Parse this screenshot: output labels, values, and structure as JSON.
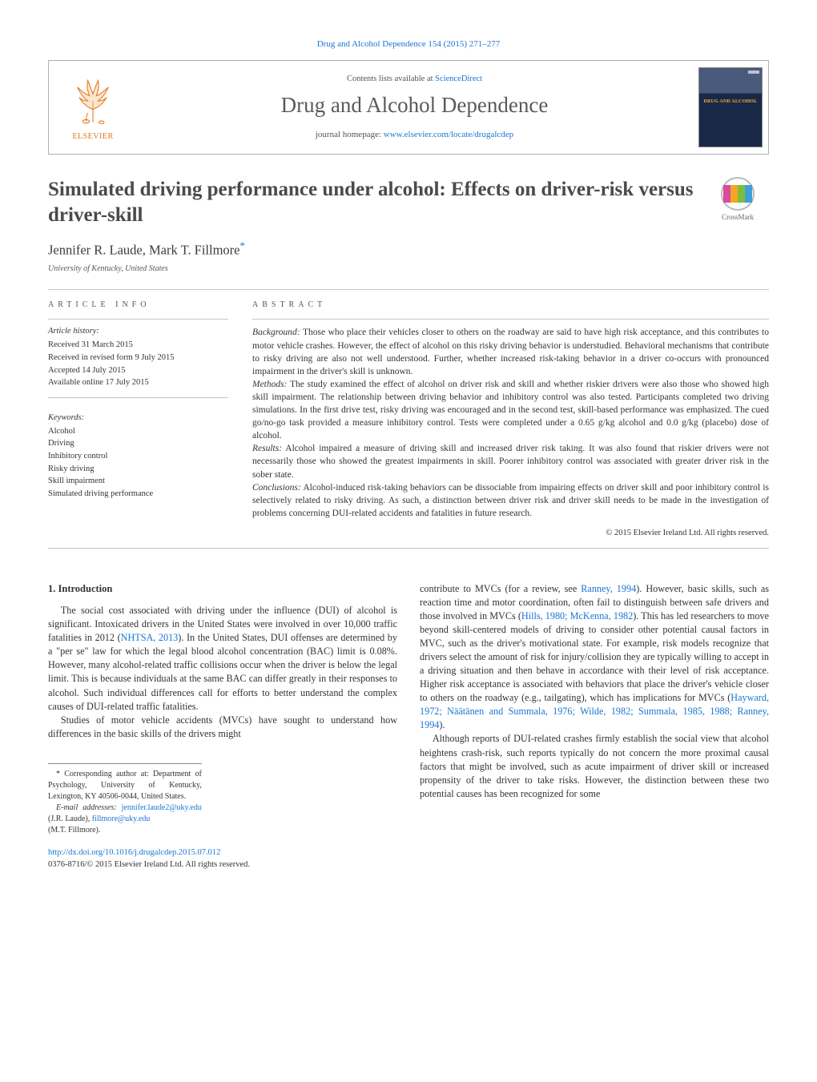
{
  "colors": {
    "link": "#1976d2",
    "text": "#333333",
    "muted": "#5a5a5a",
    "rule": "#c5c5c5",
    "elsevier": "#e67817",
    "crossmark_segments": [
      "#d94b9b",
      "#f5a623",
      "#7bbf3f",
      "#3fa0d9"
    ]
  },
  "top_link": {
    "prefix": "Drug and Alcohol Dependence 154 (2015) 271–277"
  },
  "header": {
    "contents_prefix": "Contents lists available at ",
    "contents_link": "ScienceDirect",
    "journal": "Drug and Alcohol Dependence",
    "homepage_prefix": "journal homepage: ",
    "homepage_url": "www.elsevier.com/locate/drugalcdep",
    "publisher": "ELSEVIER",
    "cover_text": "DRUG AND ALCOHOL"
  },
  "crossmark_label": "CrossMark",
  "title": "Simulated driving performance under alcohol: Effects on driver-risk versus driver-skill",
  "authors": "Jennifer R. Laude, Mark T. Fillmore",
  "corr_mark": "*",
  "affiliation": "University of Kentucky, United States",
  "article_info": {
    "label": "ARTICLE INFO",
    "history_head": "Article history:",
    "history": [
      "Received 31 March 2015",
      "Received in revised form 9 July 2015",
      "Accepted 14 July 2015",
      "Available online 17 July 2015"
    ],
    "keywords_head": "Keywords:",
    "keywords": [
      "Alcohol",
      "Driving",
      "Inhibitory control",
      "Risky driving",
      "Skill impairment",
      "Simulated driving performance"
    ]
  },
  "abstract": {
    "label": "ABSTRACT",
    "sections": [
      {
        "head": "Background:",
        "text": " Those who place their vehicles closer to others on the roadway are said to have high risk acceptance, and this contributes to motor vehicle crashes. However, the effect of alcohol on this risky driving behavior is understudied. Behavioral mechanisms that contribute to risky driving are also not well understood. Further, whether increased risk-taking behavior in a driver co-occurs with pronounced impairment in the driver's skill is unknown."
      },
      {
        "head": "Methods:",
        "text": " The study examined the effect of alcohol on driver risk and skill and whether riskier drivers were also those who showed high skill impairment. The relationship between driving behavior and inhibitory control was also tested. Participants completed two driving simulations. In the first drive test, risky driving was encouraged and in the second test, skill-based performance was emphasized. The cued go/no-go task provided a measure inhibitory control. Tests were completed under a 0.65 g/kg alcohol and 0.0 g/kg (placebo) dose of alcohol."
      },
      {
        "head": "Results:",
        "text": " Alcohol impaired a measure of driving skill and increased driver risk taking. It was also found that riskier drivers were not necessarily those who showed the greatest impairments in skill. Poorer inhibitory control was associated with greater driver risk in the sober state."
      },
      {
        "head": "Conclusions:",
        "text": " Alcohol-induced risk-taking behaviors can be dissociable from impairing effects on driver skill and poor inhibitory control is selectively related to risky driving. As such, a distinction between driver risk and driver skill needs to be made in the investigation of problems concerning DUI-related accidents and fatalities in future research."
      }
    ],
    "copyright": "© 2015 Elsevier Ireland Ltd. All rights reserved."
  },
  "body": {
    "h1": "1. Introduction",
    "p1_a": "The social cost associated with driving under the influence (DUI) of alcohol is significant. Intoxicated drivers in the United States were involved in over 10,000 traffic fatalities in 2012 (",
    "p1_ref1": "NHTSA, 2013",
    "p1_b": "). In the United States, DUI offenses are determined by a \"per se\" law for which the legal blood alcohol concentration (BAC) limit is 0.08%. However, many alcohol-related traffic collisions occur when the driver is below the legal limit. This is because individuals at the same BAC can differ greatly in their responses to alcohol. Such individual differences call for efforts to better understand the complex causes of DUI-related traffic fatalities.",
    "p2": "Studies of motor vehicle accidents (MVCs) have sought to understand how differences in the basic skills of the drivers might",
    "p3_a": "contribute to MVCs (for a review, see ",
    "p3_ref1": "Ranney, 1994",
    "p3_b": "). However, basic skills, such as reaction time and motor coordination, often fail to distinguish between safe drivers and those involved in MVCs (",
    "p3_ref2": "Hills, 1980; McKenna, 1982",
    "p3_c": "). This has led researchers to move beyond skill-centered models of driving to consider other potential causal factors in MVC, such as the driver's motivational state. For example, risk models recognize that drivers select the amount of risk for injury/collision they are typically willing to accept in a driving situation and then behave in accordance with their level of risk acceptance. Higher risk acceptance is associated with behaviors that place the driver's vehicle closer to others on the roadway (e.g., tailgating), which has implications for MVCs (",
    "p3_ref3": "Hayward, 1972; Näätänen and Summala, 1976; Wilde, 1982; Summala, 1985, 1988; Ranney, 1994",
    "p3_d": ").",
    "p4": "Although reports of DUI-related crashes firmly establish the social view that alcohol heightens crash-risk, such reports typically do not concern the more proximal causal factors that might be involved, such as acute impairment of driver skill or increased propensity of the driver to take risks. However, the distinction between these two potential causes has been recognized for some"
  },
  "footnotes": {
    "corr": "* Corresponding author at: Department of Psychology, University of Kentucky, Lexington, KY 40506-0044, United States.",
    "email_label": "E-mail addresses: ",
    "email1": "jennifer.laude2@uky.edu",
    "email1_who": " (J.R. Laude), ",
    "email2": "fillmore@uky.edu",
    "email2_who": " (M.T. Fillmore)."
  },
  "doi": {
    "url": "http://dx.doi.org/10.1016/j.drugalcdep.2015.07.012",
    "issn_line": "0376-8716/© 2015 Elsevier Ireland Ltd. All rights reserved."
  }
}
